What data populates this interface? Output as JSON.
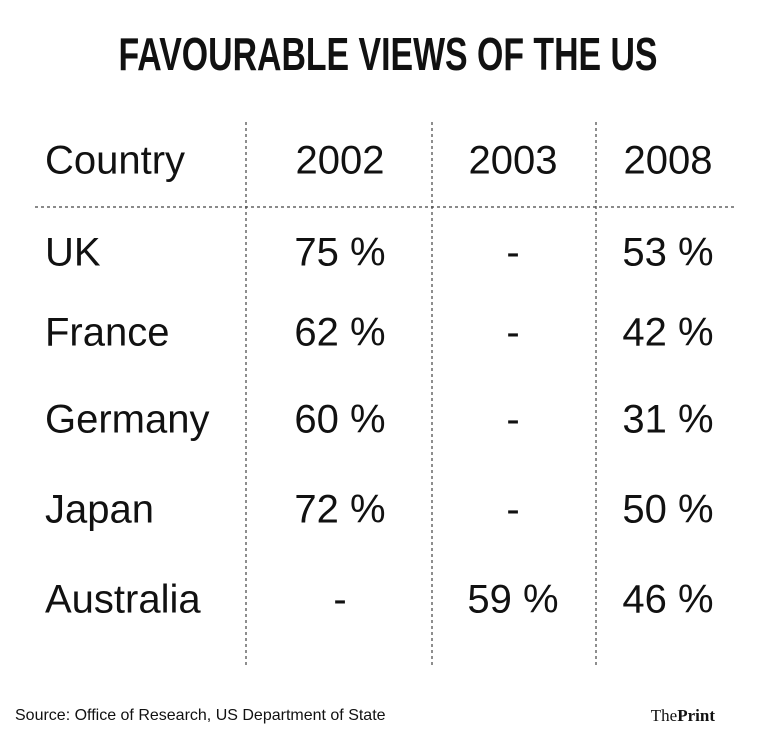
{
  "header": {
    "title": "FAVOURABLE VIEWS OF THE US"
  },
  "table": {
    "columns": [
      "Country",
      "2002",
      "2003",
      "2008"
    ],
    "rows": [
      [
        "UK",
        "75 %",
        "-",
        "53 %"
      ],
      [
        "France",
        "62 %",
        "-",
        "42 %"
      ],
      [
        "Germany",
        "60 %",
        "-",
        "31 %"
      ],
      [
        "Japan",
        "72 %",
        "-",
        "50 %"
      ],
      [
        "Australia",
        "-",
        "59 %",
        "46 %"
      ]
    ]
  },
  "footer": {
    "source": "Source: Office of Research, US Department of State",
    "logo": [
      "The",
      "Print"
    ]
  }
}
